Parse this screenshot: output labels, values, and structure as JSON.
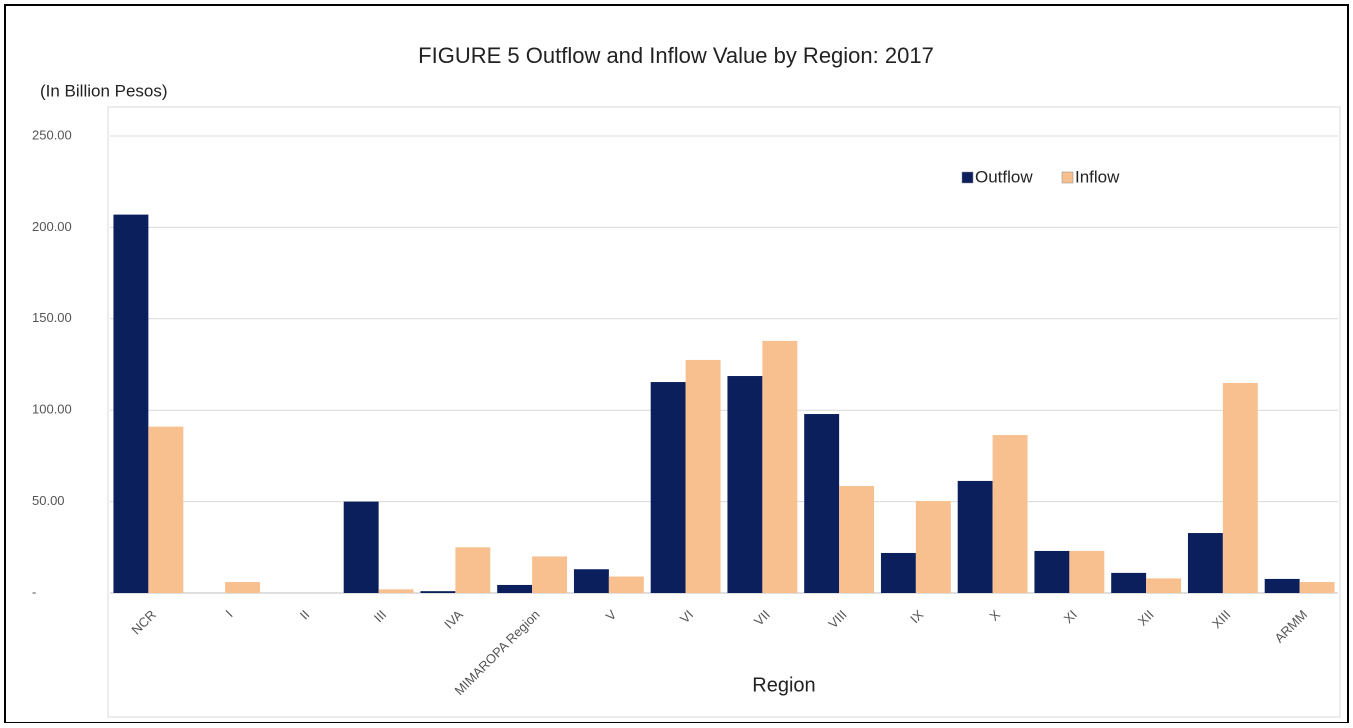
{
  "chart_data": {
    "type": "bar",
    "title": "FIGURE 5  Outflow and Inflow Value by Region: 2017",
    "y_axis_label": "(In Billion Pesos)",
    "x_axis_label": "Region",
    "categories": [
      "NCR",
      "I",
      "II",
      "III",
      "IVA",
      "MIMAROPA Region",
      "V",
      "VI",
      "VII",
      "VIII",
      "IX",
      "X",
      "XI",
      "XII",
      "XIII",
      "ARMM"
    ],
    "series": [
      {
        "name": "Outflow",
        "color": "#0b1f5c",
        "values": [
          207,
          0,
          0,
          50,
          1,
          4.4,
          13,
          115.4,
          118.7,
          97.9,
          21.9,
          61.3,
          23,
          11,
          32.8,
          7.7
        ]
      },
      {
        "name": "Inflow",
        "color": "#f8c08f",
        "values": [
          91,
          6,
          0,
          2,
          25,
          20,
          9,
          127.5,
          137.9,
          58.5,
          50.3,
          86.4,
          23,
          8,
          114.9,
          6
        ]
      }
    ],
    "ylim": [
      0,
      250
    ],
    "yticks": [
      {
        "value": 0,
        "label": "-"
      },
      {
        "value": 50,
        "label": "50.00"
      },
      {
        "value": 100,
        "label": "100.00"
      },
      {
        "value": 150,
        "label": "150.00"
      },
      {
        "value": 200,
        "label": "200.00"
      },
      {
        "value": 250,
        "label": "250.00"
      }
    ],
    "grid": true,
    "legend": "top-right"
  }
}
